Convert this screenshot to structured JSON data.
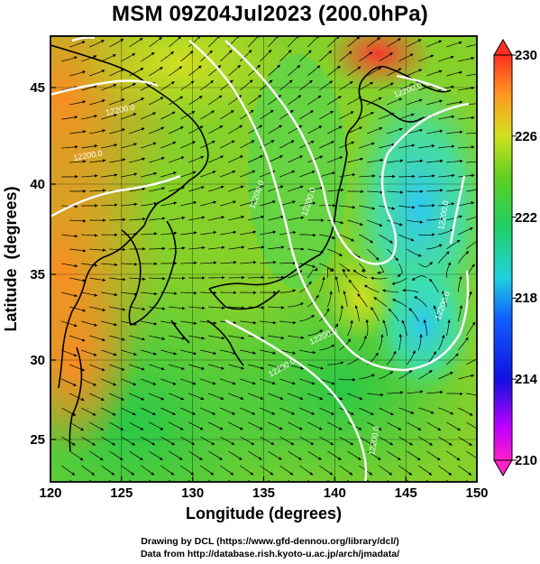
{
  "title": "MSM 09Z04Jul2023 (200.0hPa)",
  "xlabel": "Longitude (degrees)",
  "ylabel": "Latitude  (degrees)",
  "x_ticks": [
    "120",
    "125",
    "130",
    "135",
    "140",
    "145",
    "150"
  ],
  "y_ticks": [
    "25",
    "30",
    "35",
    "40",
    "45"
  ],
  "colorbar_ticks": [
    "230",
    "226",
    "222",
    "218",
    "214",
    "210"
  ],
  "colorbar_range": [
    210,
    230
  ],
  "contour_labels": [
    {
      "text": "12200.0"
    },
    {
      "text": "12200.0"
    },
    {
      "text": "12200.0"
    },
    {
      "text": "12200.0"
    },
    {
      "text": "12200.0"
    },
    {
      "text": "12200.0"
    },
    {
      "text": "12200.0"
    },
    {
      "text": "12200.0"
    },
    {
      "text": "12200.0"
    },
    {
      "text": "12200.0"
    }
  ],
  "credits": [
    "Drawing by DCL (https://www.gfd-dennou.org/library/dcl/)",
    "Data from http://database.rish.kyoto-u.ac.jp/arch/jmadata/"
  ],
  "map_extent": {
    "lon": [
      120,
      150
    ],
    "lat": [
      22.4,
      47.6
    ]
  },
  "colors": {
    "warm": "#ff7a1a",
    "mid": "#22cc33",
    "cool": "#30d0e0",
    "contour": "#ffffff",
    "frame": "#000000"
  }
}
